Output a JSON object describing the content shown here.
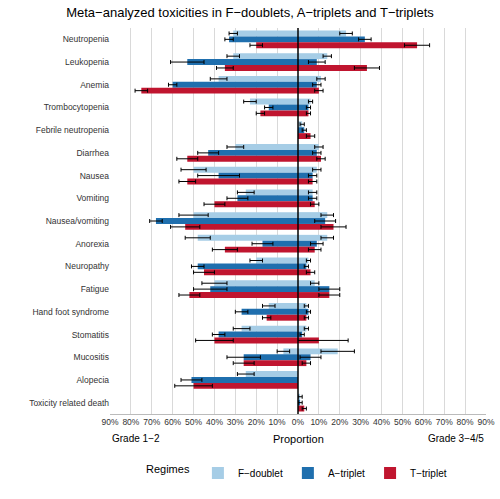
{
  "chart_data": {
    "type": "bar",
    "orientation": "horizontal",
    "title": "Meta−analyzed toxicities in F−doublets, A−triplets and T−triplets",
    "xlabel": "Proportion",
    "legend_title": "Regimes",
    "legend": "bottom",
    "grid": true,
    "categories": [
      "Neutropenia",
      "Leukopenia",
      "Anemia",
      "Trombocytopenia",
      "Febrile neutropenia",
      "Diarrhea",
      "Nausea",
      "Vomiting",
      "Nausea/vomiting",
      "Anorexia",
      "Neuropathy",
      "Fatigue",
      "Hand foot syndrome",
      "Stomatitis",
      "Mucositis",
      "Alopecia",
      "Toxicity related death"
    ],
    "panels": [
      {
        "label": "Grade 1−2",
        "xlim": [
          0,
          90
        ],
        "xticks": [
          {
            "value": 10,
            "label": "10%"
          },
          {
            "value": 20,
            "label": "20%"
          },
          {
            "value": 30,
            "label": "30%"
          },
          {
            "value": 40,
            "label": "40%"
          },
          {
            "value": 50,
            "label": "50%"
          },
          {
            "value": 60,
            "label": "60%"
          },
          {
            "value": 70,
            "label": "70%"
          },
          {
            "value": 80,
            "label": "80%"
          },
          {
            "value": 90,
            "label": "90%"
          }
        ],
        "series": [
          {
            "name": "F−doublet",
            "color": "#a6cde6",
            "values": [
              31,
              31,
              38,
              23,
              null,
              30,
              50,
              25,
              50,
              48,
              20,
              40,
              14,
              27,
              7,
              25,
              null
            ],
            "errors": [
              2,
              3,
              4,
              3,
              null,
              4,
              6,
              4,
              7,
              6,
              3,
              6,
              3,
              4,
              3,
              4,
              null
            ]
          },
          {
            "name": "A−triplet",
            "color": "#1f6fae",
            "values": [
              33,
              53,
              60,
              14,
              null,
              43,
              38,
              29,
              68,
              17,
              48,
              42,
              27,
              38,
              26,
              51,
              null
            ],
            "errors": [
              2,
              8,
              2,
              2,
              null,
              5,
              10,
              5,
              3,
              5,
              3,
              8,
              3,
              3,
              8,
              5,
              null
            ]
          },
          {
            "name": "T−triplet",
            "color": "#c0152f",
            "values": [
              20,
              35,
              75,
              18,
              null,
              53,
              53,
              40,
              54,
              35,
              45,
              52,
              15,
              40,
              26,
              50,
              null
            ],
            "errors": [
              3,
              4,
              3,
              2,
              null,
              5,
              4,
              5,
              7,
              6,
              5,
              5,
              2,
              9,
              5,
              9,
              null
            ]
          }
        ]
      },
      {
        "label": "Grade 3−4/5",
        "xlim": [
          0,
          90
        ],
        "xticks": [
          {
            "value": 0,
            "label": "0%"
          },
          {
            "value": 10,
            "label": "10%"
          },
          {
            "value": 20,
            "label": "20%"
          },
          {
            "value": 30,
            "label": "30%"
          },
          {
            "value": 40,
            "label": "40%"
          },
          {
            "value": 50,
            "label": "50%"
          },
          {
            "value": 60,
            "label": "60%"
          },
          {
            "value": 70,
            "label": "70%"
          },
          {
            "value": 80,
            "label": "80%"
          },
          {
            "value": 90,
            "label": "90%"
          }
        ],
        "series": [
          {
            "name": "F−doublet",
            "color": "#a6cde6",
            "values": [
              23,
              14,
              11,
              6,
              2,
              10,
              9,
              7,
              14,
              14,
              5,
              8,
              4,
              4,
              19,
              null,
              1
            ],
            "errors": [
              3,
              2,
              2,
              1,
              1,
              2,
              2,
              2,
              3,
              3,
              1,
              2,
              1,
              1,
              8,
              null,
              1
            ]
          },
          {
            "name": "A−triplet",
            "color": "#1f6fae",
            "values": [
              32,
              9,
              9,
              5,
              3,
              9,
              7,
              7,
              13,
              9,
              4,
              15,
              5,
              2,
              6,
              null,
              1
            ],
            "errors": [
              3,
              4,
              2,
              1,
              1,
              2,
              2,
              2,
              5,
              3,
              1,
              5,
              1,
              1,
              5,
              null,
              1
            ]
          },
          {
            "name": "T−triplet",
            "color": "#c0152f",
            "values": [
              57,
              33,
              10,
              5,
              6,
              11,
              7,
              8,
              17,
              8,
              6,
              15,
              4,
              10,
              4,
              null,
              3
            ],
            "errors": [
              6,
              6,
              2,
              1,
              2,
              2,
              2,
              2,
              6,
              3,
              2,
              5,
              1,
              14,
              2,
              null,
              1
            ]
          }
        ]
      }
    ]
  }
}
